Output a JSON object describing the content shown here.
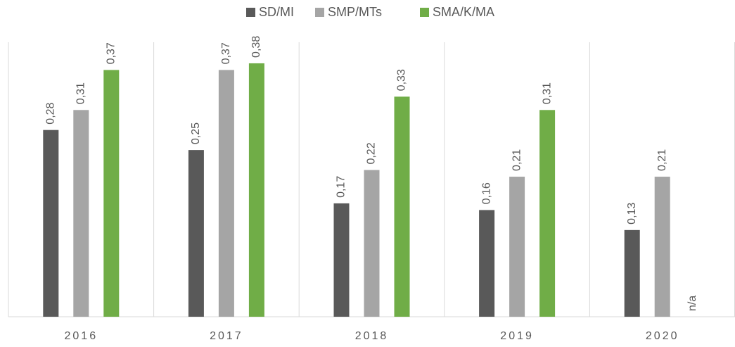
{
  "chart_data": {
    "type": "bar",
    "categories": [
      "2016",
      "2017",
      "2018",
      "2019",
      "2020"
    ],
    "series": [
      {
        "name": "SD/MI",
        "color": "#595959",
        "values": [
          0.28,
          0.25,
          0.17,
          0.16,
          0.13
        ],
        "value_labels": [
          "0,28",
          "0,25",
          "0,17",
          "0,16",
          "0,13"
        ]
      },
      {
        "name": "SMP/MTs",
        "color": "#a5a5a5",
        "values": [
          0.31,
          0.37,
          0.22,
          0.21,
          0.21
        ],
        "value_labels": [
          "0,31",
          "0,37",
          "0,22",
          "0,21",
          "0,21"
        ]
      },
      {
        "name": "SMA/K/MA",
        "color": "#70ad47",
        "values": [
          0.37,
          0.38,
          0.33,
          0.31,
          null
        ],
        "value_labels": [
          "0,37",
          "0,38",
          "0,33",
          "0,31",
          "n/a"
        ]
      }
    ],
    "ylim": [
      0,
      0.4
    ],
    "legend": "top"
  }
}
